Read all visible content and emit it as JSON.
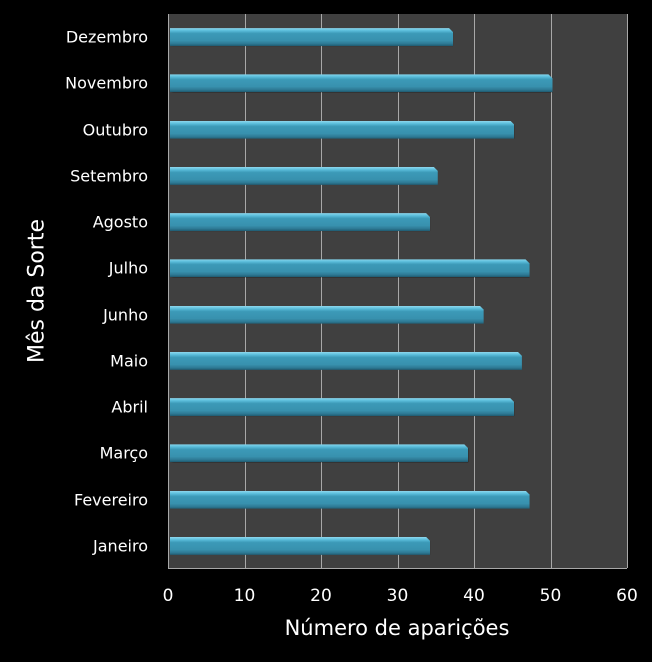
{
  "chart_data": {
    "type": "bar",
    "orientation": "horizontal",
    "title": "",
    "xlabel": "Número de aparições",
    "ylabel": "Mês da Sorte",
    "xlim": [
      0,
      60
    ],
    "xticks": [
      "0",
      "10",
      "20",
      "30",
      "40",
      "50",
      "60"
    ],
    "grid": true,
    "legend": false,
    "categories": [
      "Janeiro",
      "Fevereiro",
      "Março",
      "Abril",
      "Maio",
      "Junho",
      "Julho",
      "Agosto",
      "Setembro",
      "Outubro",
      "Novembro",
      "Dezembro"
    ],
    "values": [
      34,
      47,
      39,
      45,
      46,
      41,
      47,
      34,
      35,
      45,
      50,
      37
    ],
    "colors": {
      "bar": "#3891ae",
      "plot_background": "#404040",
      "figure_background": "#000000",
      "gridline": "#a8a8a8"
    }
  }
}
